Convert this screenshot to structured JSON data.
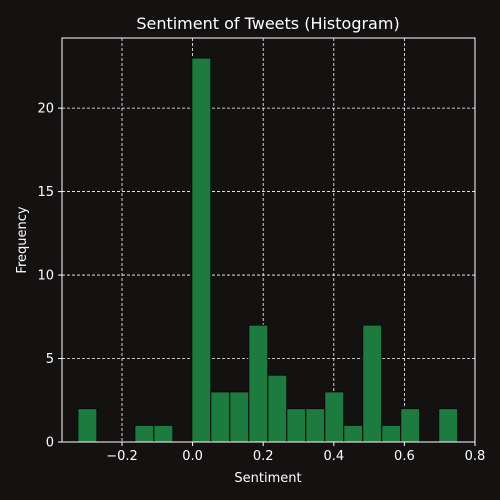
{
  "chart_data": {
    "type": "bar",
    "title": "Sentiment of Tweets (Histogram)",
    "xlabel": "Sentiment",
    "ylabel": "Frequency",
    "xlim": [
      -0.37,
      0.8
    ],
    "ylim": [
      0,
      24.2
    ],
    "xticks": [
      -0.2,
      0.0,
      0.2,
      0.4,
      0.6,
      0.8
    ],
    "xtick_labels": [
      "−0.2",
      "0.0",
      "0.2",
      "0.4",
      "0.6",
      "0.8"
    ],
    "yticks": [
      0,
      5,
      10,
      15,
      20
    ],
    "ytick_labels": [
      "0",
      "5",
      "10",
      "15",
      "20"
    ],
    "grid": true,
    "bin_edges": [
      -0.325,
      -0.2712,
      -0.2174,
      -0.1636,
      -0.1098,
      -0.056,
      -0.0022,
      0.0516,
      0.1054,
      0.1592,
      0.213,
      0.2668,
      0.3206,
      0.3744,
      0.4282,
      0.482,
      0.5358,
      0.5896,
      0.6434,
      0.6972,
      0.751
    ],
    "values": [
      2,
      0,
      0,
      1,
      1,
      0,
      23,
      3,
      3,
      7,
      4,
      2,
      2,
      3,
      1,
      7,
      1,
      2,
      0,
      2
    ],
    "bar_color": "#1e7b3f",
    "edge_color": "#0b0b0b",
    "background": "#141111",
    "axes_color": "#ffffff"
  }
}
